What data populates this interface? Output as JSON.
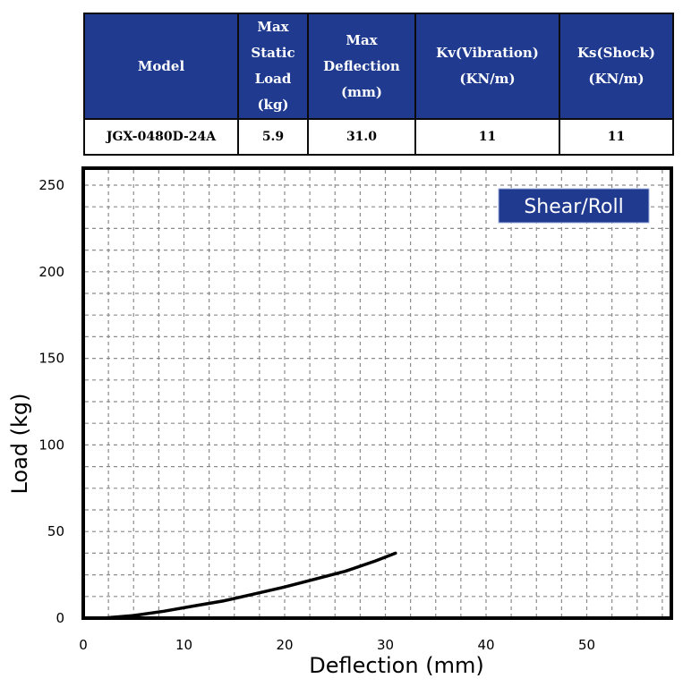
{
  "table": {
    "headers": [
      "Model",
      "Max Static Load (kg)",
      "Max Deflection (mm)",
      "Kv(Vibration) (KN/m)",
      "Ks(Shock) (KN/m)"
    ],
    "header_lines": [
      [
        "Model"
      ],
      [
        "Max",
        "Static",
        "Load",
        "(kg)"
      ],
      [
        "Max",
        "Deflection",
        "(mm)"
      ],
      [
        "Kv(Vibration)",
        "(KN/m)"
      ],
      [
        "Ks(Shock)",
        "(KN/m)"
      ]
    ],
    "rows": [
      [
        "JGX-0480D-24A",
        "5.9",
        "31.0",
        "11",
        "11"
      ]
    ],
    "header_bg": "#1f3a8f"
  },
  "chart_data": {
    "type": "line",
    "title": "",
    "xlabel": "Deflection (mm)",
    "ylabel": "Load (kg)",
    "xlim": [
      0,
      58
    ],
    "ylim": [
      0,
      255
    ],
    "xticks": [
      0,
      10,
      20,
      30,
      40,
      50
    ],
    "yticks": [
      0,
      50,
      100,
      150,
      200,
      250
    ],
    "grid": true,
    "legend": {
      "label": "Shear/Roll",
      "position": "top-right",
      "bg": "#1f3a8f"
    },
    "series": [
      {
        "name": "Shear/Roll",
        "color": "#000000",
        "x": [
          2,
          5,
          8,
          11,
          14,
          17,
          20,
          23,
          26,
          29,
          31
        ],
        "y": [
          0,
          1.5,
          4,
          7,
          10,
          14,
          18,
          22.5,
          27,
          33,
          37.5
        ]
      }
    ]
  }
}
